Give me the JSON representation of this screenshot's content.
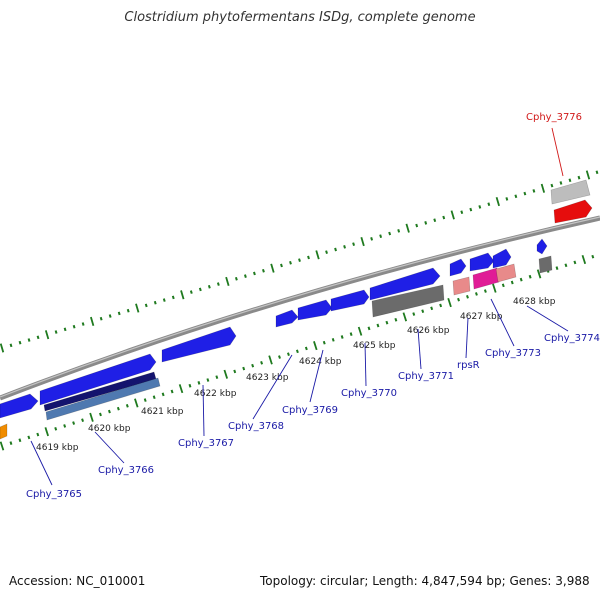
{
  "title": "Clostridium phytofermentans ISDg, complete genome",
  "footer": {
    "accession": "Accession: NC_010001",
    "summary": "Topology: circular; Length: 4,847,594 bp; Genes: 3,988"
  },
  "colors": {
    "backbone": "#8a8a8a",
    "tick": "#1f7a1f",
    "gene_forward": "#1f1fe6",
    "gene_dark": "#14146e",
    "gene_steel": "#4f79b0",
    "gene_gray": "#6b6b6b",
    "gene_light_gray": "#bdbdbd",
    "gene_red": "#e60d0d",
    "gene_salmon": "#e88a8a",
    "gene_pink": "#e01c96",
    "gene_orange": "#f08c00",
    "label_blue": "#1a1aa6",
    "label_red": "#d11a1a"
  },
  "kbp_ticks": [
    "4619 kbp",
    "4620 kbp",
    "4621 kbp",
    "4622 kbp",
    "4623 kbp",
    "4624 kbp",
    "4625 kbp",
    "4626 kbp",
    "4627 kbp",
    "4628 kbp"
  ],
  "genes": [
    {
      "name": "Cphy_3765",
      "color": "label_blue"
    },
    {
      "name": "Cphy_3766",
      "color": "label_blue"
    },
    {
      "name": "Cphy_3767",
      "color": "label_blue"
    },
    {
      "name": "Cphy_3768",
      "color": "label_blue"
    },
    {
      "name": "Cphy_3769",
      "color": "label_blue"
    },
    {
      "name": "Cphy_3770",
      "color": "label_blue"
    },
    {
      "name": "Cphy_3771",
      "color": "label_blue"
    },
    {
      "name": "rpsR",
      "color": "label_blue"
    },
    {
      "name": "Cphy_3773",
      "color": "label_blue"
    },
    {
      "name": "Cphy_3774",
      "color": "label_blue"
    },
    {
      "name": "Cphy_3776",
      "color": "label_red"
    }
  ]
}
